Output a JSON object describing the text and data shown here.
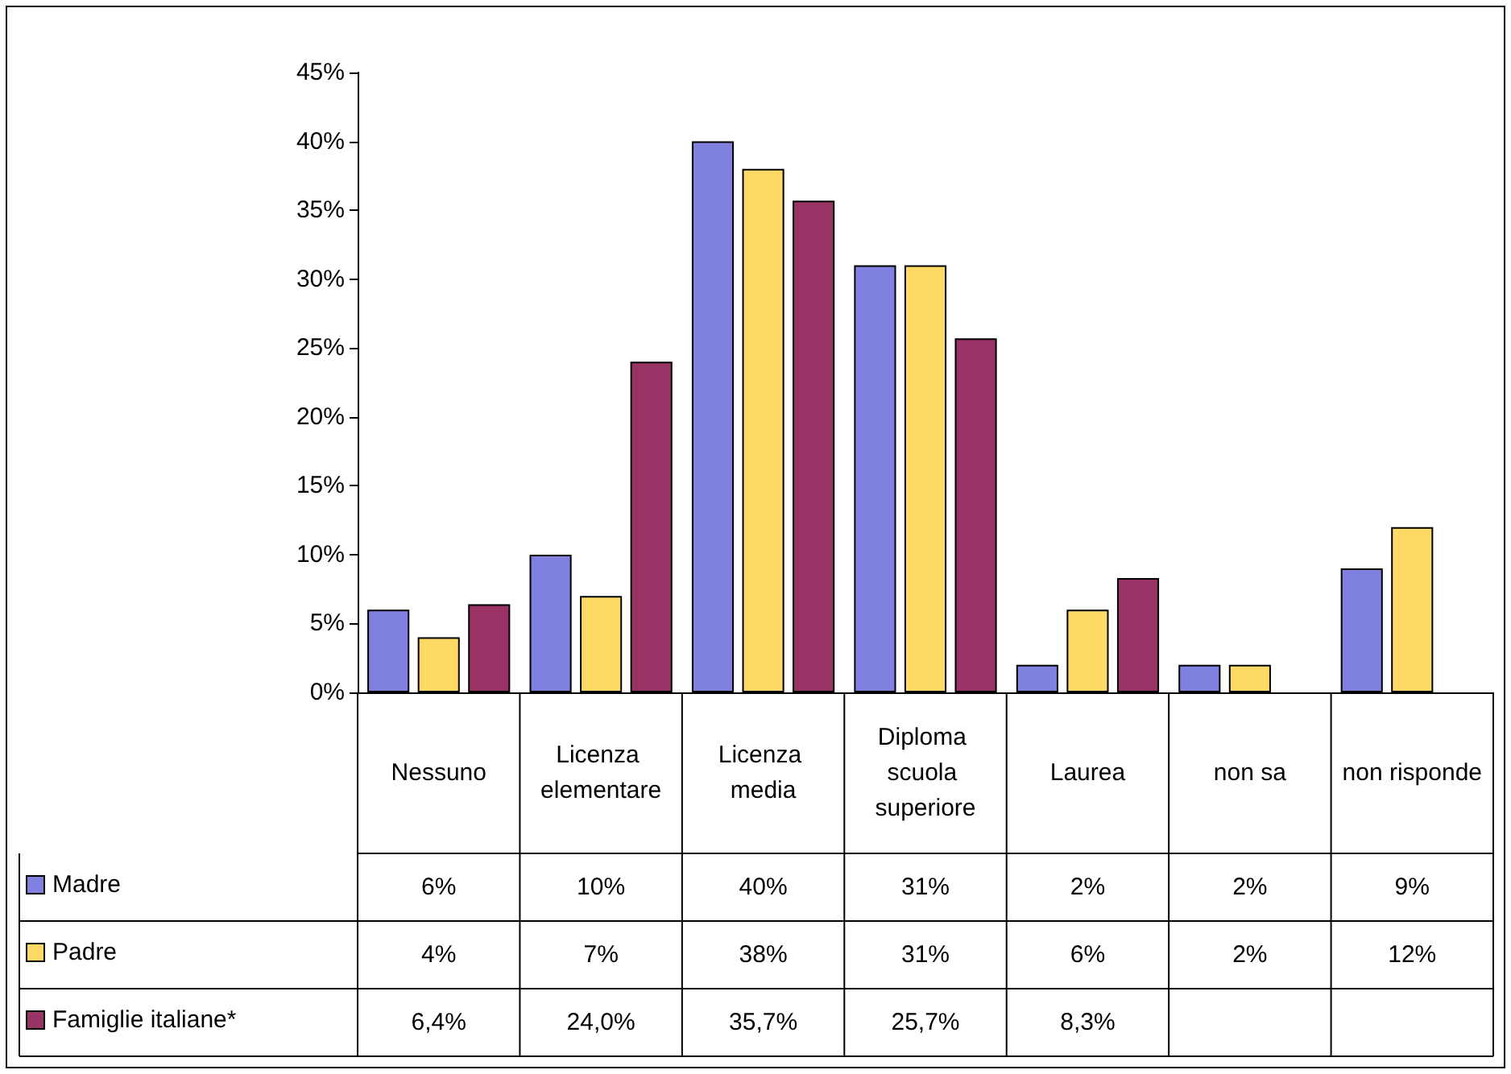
{
  "chart_data": {
    "type": "bar",
    "categories": [
      "Nessuno",
      "Licenza elementare",
      "Licenza media",
      "Diploma scuola superiore",
      "Laurea",
      "non sa",
      "non risponde"
    ],
    "series": [
      {
        "name": "Madre",
        "color": "#8080e0",
        "values": [
          6,
          10,
          40,
          31,
          2,
          2,
          9
        ],
        "value_labels": [
          "6%",
          "10%",
          "40%",
          "31%",
          "2%",
          "2%",
          "9%"
        ]
      },
      {
        "name": "Padre",
        "color": "#ffd966",
        "values": [
          4,
          7,
          38,
          31,
          6,
          2,
          12
        ],
        "value_labels": [
          "4%",
          "7%",
          "38%",
          "31%",
          "6%",
          "2%",
          "12%"
        ]
      },
      {
        "name": "Famiglie italiane*",
        "color": "#993366",
        "values": [
          6.4,
          24.0,
          35.7,
          25.7,
          8.3,
          null,
          null
        ],
        "value_labels": [
          "6,4%",
          "24,0%",
          "35,7%",
          "25,7%",
          "8,3%",
          null,
          null
        ]
      }
    ],
    "ylim": [
      0,
      45
    ],
    "yticks": [
      {
        "value": 0,
        "label": "0%"
      },
      {
        "value": 5,
        "label": "5%"
      },
      {
        "value": 10,
        "label": "10%"
      },
      {
        "value": 15,
        "label": "15%"
      },
      {
        "value": 20,
        "label": "20%"
      },
      {
        "value": 25,
        "label": "25%"
      },
      {
        "value": 30,
        "label": "30%"
      },
      {
        "value": 35,
        "label": "35%"
      },
      {
        "value": 40,
        "label": "40%"
      },
      {
        "value": 45,
        "label": "45%"
      }
    ],
    "grid": false,
    "legend": "bottom left"
  }
}
